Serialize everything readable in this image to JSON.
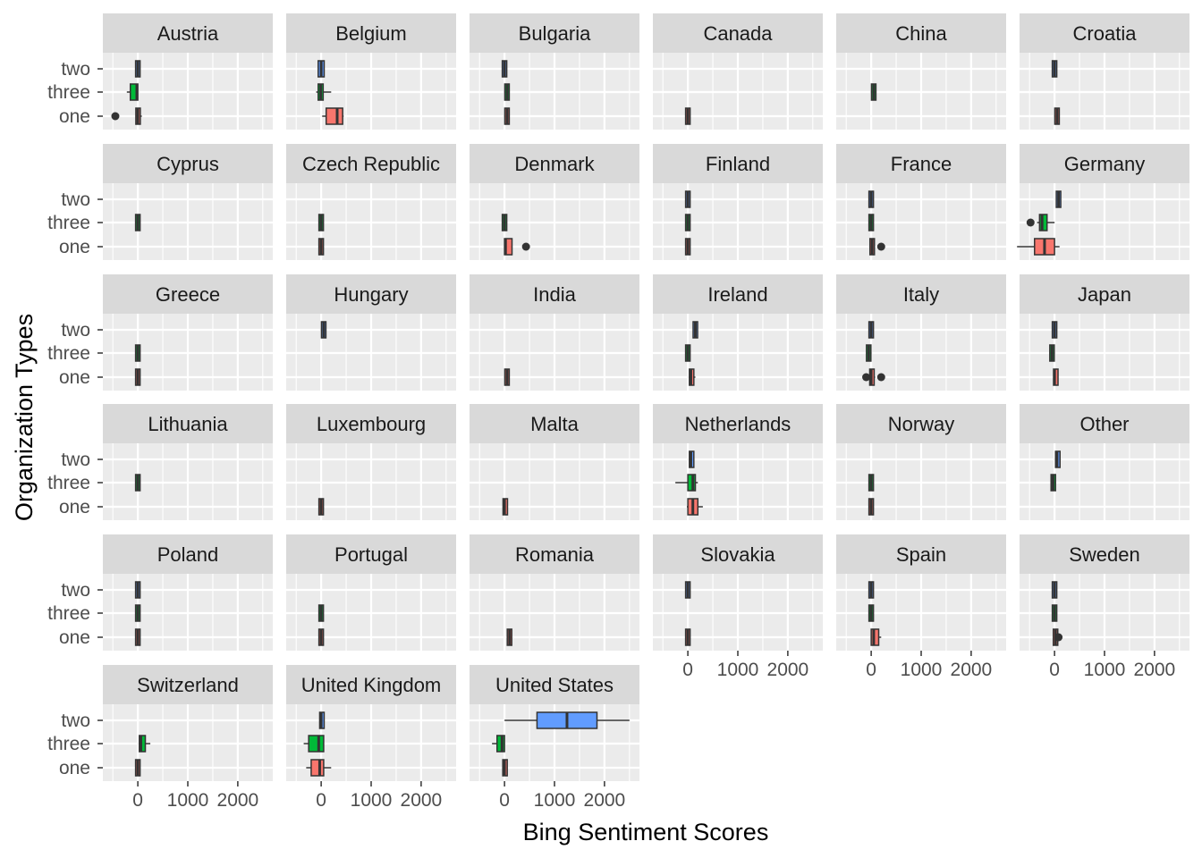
{
  "chart_data": {
    "type": "boxplot",
    "facet": "wrap",
    "ncol": 6,
    "xlabel": "Bing Sentiment Scores",
    "ylabel": "Organization Types",
    "categories": [
      "one",
      "three",
      "two"
    ],
    "x_ticks": [
      0,
      1000,
      2000
    ],
    "xlim": [
      -700,
      2700
    ],
    "grid": true,
    "legend": "none",
    "colors": {
      "one": "#F8766D",
      "three": "#00BA38",
      "two": "#619CFF",
      "panel_bg": "#EBEBEB",
      "strip_bg": "#D9D9D9",
      "grid": "#FFFFFF",
      "outline": "#333333"
    },
    "panels": [
      {
        "name": "Austria",
        "boxes": {
          "two": {
            "q1": 0,
            "median": 0,
            "q3": 0
          },
          "three": {
            "q1": -150,
            "median": -20,
            "q3": 0,
            "wlo": -220,
            "whi": 0
          },
          "one": {
            "q1": -10,
            "median": 0,
            "q3": 20,
            "wlo": -30,
            "whi": 80,
            "outliers": [
              -450
            ]
          }
        }
      },
      {
        "name": "Belgium",
        "boxes": {
          "two": {
            "q1": -60,
            "median": 0,
            "q3": 60
          },
          "three": {
            "q1": -60,
            "median": -10,
            "q3": 40,
            "wlo": -100,
            "whi": 200
          },
          "one": {
            "q1": 100,
            "median": 320,
            "q3": 430,
            "wlo": 20,
            "whi": 450
          }
        }
      },
      {
        "name": "Bulgaria",
        "boxes": {
          "two": {
            "q1": 0,
            "median": 0,
            "q3": 0
          },
          "three": {
            "q1": 50,
            "median": 50,
            "q3": 50
          },
          "one": {
            "q1": 50,
            "median": 50,
            "q3": 50
          }
        }
      },
      {
        "name": "Canada",
        "boxes": {
          "one": {
            "q1": 0,
            "median": 0,
            "q3": 0
          }
        }
      },
      {
        "name": "China",
        "boxes": {
          "three": {
            "q1": 50,
            "median": 50,
            "q3": 50
          }
        }
      },
      {
        "name": "Croatia",
        "boxes": {
          "two": {
            "q1": 0,
            "median": 0,
            "q3": 0
          },
          "one": {
            "q1": 50,
            "median": 50,
            "q3": 50
          }
        }
      },
      {
        "name": "Cyprus",
        "boxes": {
          "three": {
            "q1": 0,
            "median": 0,
            "q3": 0
          }
        }
      },
      {
        "name": "Czech Republic",
        "boxes": {
          "three": {
            "q1": 0,
            "median": 0,
            "q3": 0
          },
          "one": {
            "q1": 0,
            "median": 0,
            "q3": 0
          }
        }
      },
      {
        "name": "Denmark",
        "boxes": {
          "three": {
            "q1": 0,
            "median": 0,
            "q3": 0
          },
          "one": {
            "q1": 0,
            "median": 20,
            "q3": 150,
            "outliers": [
              430
            ]
          }
        }
      },
      {
        "name": "Finland",
        "boxes": {
          "two": {
            "q1": 0,
            "median": 0,
            "q3": 0
          },
          "three": {
            "q1": 0,
            "median": 0,
            "q3": 0
          },
          "one": {
            "q1": 0,
            "median": 0,
            "q3": 0,
            "wlo": -20,
            "whi": 50
          }
        }
      },
      {
        "name": "France",
        "boxes": {
          "two": {
            "q1": 0,
            "median": 0,
            "q3": 0
          },
          "three": {
            "q1": 0,
            "median": 0,
            "q3": 0
          },
          "one": {
            "q1": 0,
            "median": 20,
            "q3": 40,
            "wlo": 0,
            "whi": 60,
            "outliers": [
              200
            ]
          }
        }
      },
      {
        "name": "Germany",
        "boxes": {
          "two": {
            "q1": 60,
            "median": 80,
            "q3": 100
          },
          "three": {
            "q1": -300,
            "median": -250,
            "q3": -150,
            "wlo": -350,
            "whi": 0,
            "outliers": [
              -480
            ]
          },
          "one": {
            "q1": -400,
            "median": -200,
            "q3": 0,
            "wlo": -750,
            "whi": 100
          }
        }
      },
      {
        "name": "Greece",
        "boxes": {
          "three": {
            "q1": 0,
            "median": 0,
            "q3": 0
          },
          "one": {
            "q1": 0,
            "median": 0,
            "q3": 0
          }
        }
      },
      {
        "name": "Hungary",
        "boxes": {
          "two": {
            "q1": 50,
            "median": 50,
            "q3": 50
          }
        }
      },
      {
        "name": "India",
        "boxes": {
          "one": {
            "q1": 50,
            "median": 50,
            "q3": 50
          }
        }
      },
      {
        "name": "Ireland",
        "boxes": {
          "two": {
            "q1": 150,
            "median": 150,
            "q3": 150
          },
          "three": {
            "q1": 0,
            "median": 0,
            "q3": 0
          },
          "one": {
            "q1": 50,
            "median": 60,
            "q3": 100,
            "wlo": 20,
            "whi": 150
          }
        }
      },
      {
        "name": "Italy",
        "boxes": {
          "two": {
            "q1": 0,
            "median": 0,
            "q3": 0
          },
          "three": {
            "q1": -50,
            "median": -50,
            "q3": -50
          },
          "one": {
            "q1": -20,
            "median": 0,
            "q3": 50,
            "wlo": -40,
            "whi": 80,
            "outliers": [
              -100,
              200
            ]
          }
        }
      },
      {
        "name": "Japan",
        "boxes": {
          "two": {
            "q1": 0,
            "median": 0,
            "q3": 0
          },
          "three": {
            "q1": -50,
            "median": -50,
            "q3": -50
          },
          "one": {
            "q1": 0,
            "median": 0,
            "q3": 50
          }
        }
      },
      {
        "name": "Lithuania",
        "boxes": {
          "three": {
            "q1": 0,
            "median": 0,
            "q3": 0
          }
        }
      },
      {
        "name": "Luxembourg",
        "boxes": {
          "one": {
            "q1": 0,
            "median": 0,
            "q3": 0
          }
        }
      },
      {
        "name": "Malta",
        "boxes": {
          "one": {
            "q1": 0,
            "median": 0,
            "q3": 30,
            "wlo": -10,
            "whi": 60
          }
        }
      },
      {
        "name": "Netherlands",
        "boxes": {
          "two": {
            "q1": 50,
            "median": 60,
            "q3": 100
          },
          "three": {
            "q1": 0,
            "median": 100,
            "q3": 150,
            "wlo": -250,
            "whi": 200
          },
          "one": {
            "q1": 0,
            "median": 100,
            "q3": 200,
            "wlo": -20,
            "whi": 300
          }
        }
      },
      {
        "name": "Norway",
        "boxes": {
          "three": {
            "q1": 0,
            "median": 0,
            "q3": 0
          },
          "one": {
            "q1": 0,
            "median": 0,
            "q3": 0
          }
        }
      },
      {
        "name": "Other",
        "boxes": {
          "two": {
            "q1": 50,
            "median": 50,
            "q3": 80
          },
          "three": {
            "q1": -50,
            "median": -30,
            "q3": 0
          }
        }
      },
      {
        "name": "Poland",
        "boxes": {
          "two": {
            "q1": 0,
            "median": 0,
            "q3": 0
          },
          "three": {
            "q1": 0,
            "median": 0,
            "q3": 0
          },
          "one": {
            "q1": 0,
            "median": 0,
            "q3": 0
          }
        }
      },
      {
        "name": "Portugal",
        "boxes": {
          "three": {
            "q1": 0,
            "median": 0,
            "q3": 0
          },
          "one": {
            "q1": 0,
            "median": 0,
            "q3": 0
          }
        }
      },
      {
        "name": "Romania",
        "boxes": {
          "one": {
            "q1": 100,
            "median": 100,
            "q3": 100
          }
        }
      },
      {
        "name": "Slovakia",
        "boxes": {
          "two": {
            "q1": 0,
            "median": 0,
            "q3": 0
          },
          "one": {
            "q1": 0,
            "median": 0,
            "q3": 0
          }
        }
      },
      {
        "name": "Spain",
        "boxes": {
          "two": {
            "q1": 0,
            "median": 0,
            "q3": 0
          },
          "three": {
            "q1": -20,
            "median": 0,
            "q3": 20
          },
          "one": {
            "q1": 0,
            "median": 50,
            "q3": 150,
            "wlo": -10,
            "whi": 200
          }
        }
      },
      {
        "name": "Sweden",
        "boxes": {
          "two": {
            "q1": 0,
            "median": 0,
            "q3": 0
          },
          "three": {
            "q1": 0,
            "median": 0,
            "q3": 0
          },
          "one": {
            "q1": 0,
            "median": 20,
            "q3": 40,
            "wlo": -10,
            "whi": 60,
            "outliers": [
              80
            ]
          }
        }
      },
      {
        "name": "Switzerland",
        "boxes": {
          "three": {
            "q1": 30,
            "median": 60,
            "q3": 150,
            "wlo": 20,
            "whi": 250
          },
          "one": {
            "q1": 0,
            "median": 0,
            "q3": 0
          }
        }
      },
      {
        "name": "United Kingdom",
        "boxes": {
          "two": {
            "q1": -20,
            "median": 0,
            "q3": 50
          },
          "three": {
            "q1": -250,
            "median": -50,
            "q3": 50,
            "wlo": -350,
            "whi": 60
          },
          "one": {
            "q1": -200,
            "median": -30,
            "q3": 50,
            "wlo": -300,
            "whi": 200
          }
        }
      },
      {
        "name": "United States",
        "boxes": {
          "two": {
            "q1": 650,
            "median": 1250,
            "q3": 1850,
            "wlo": 0,
            "whi": 2500
          },
          "three": {
            "q1": -150,
            "median": -50,
            "q3": 0,
            "wlo": -250,
            "whi": 0
          },
          "one": {
            "q1": -30,
            "median": 0,
            "q3": 50
          }
        }
      }
    ]
  }
}
